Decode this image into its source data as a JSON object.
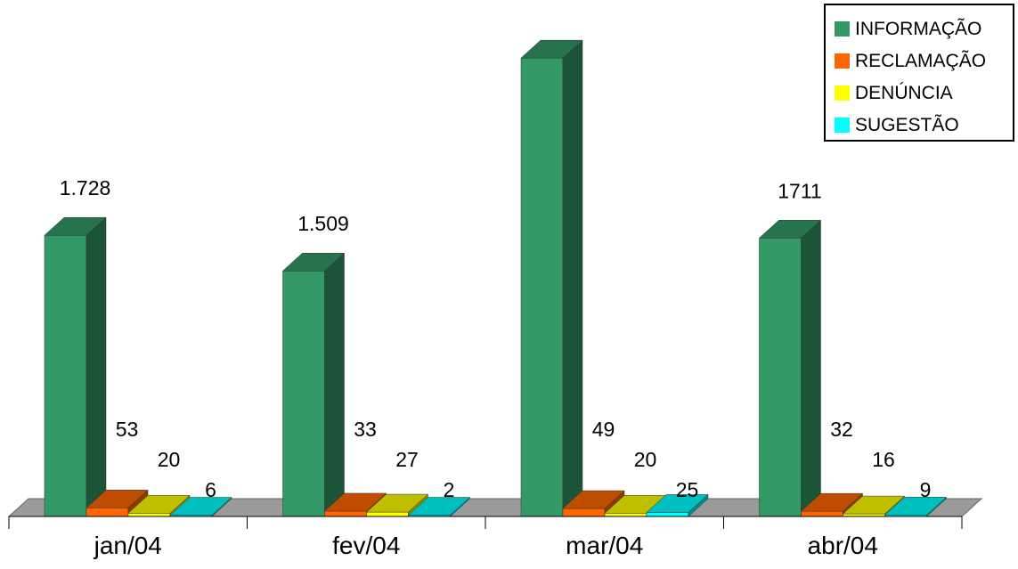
{
  "chart_data": {
    "type": "bar",
    "categories": [
      "jan/04",
      "fev/04",
      "mar/04",
      "abr/04"
    ],
    "series": [
      {
        "name": "INFORMAÇÃO",
        "color": "#339966",
        "values": [
          1728,
          1509,
          2817,
          1711
        ],
        "labels": [
          "1.728",
          "1.509",
          "",
          "1711"
        ]
      },
      {
        "name": "RECLAMAÇÃO",
        "color": "#ff6600",
        "values": [
          53,
          33,
          49,
          32
        ],
        "labels": [
          "53",
          "33",
          "49",
          "32"
        ]
      },
      {
        "name": "DENÚNCIA",
        "color": "#ffff00",
        "values": [
          20,
          27,
          20,
          16
        ],
        "labels": [
          "20",
          "27",
          "20",
          "16"
        ]
      },
      {
        "name": "SUGESTÃO",
        "color": "#00ffff",
        "values": [
          6,
          2,
          25,
          9
        ],
        "labels": [
          "6",
          "2",
          "25",
          "9"
        ]
      }
    ],
    "title": "",
    "xlabel": "",
    "ylabel": "",
    "ylim": [
      0,
      2900
    ],
    "grid": false,
    "legend": "top-right",
    "bar_style": "3d"
  }
}
